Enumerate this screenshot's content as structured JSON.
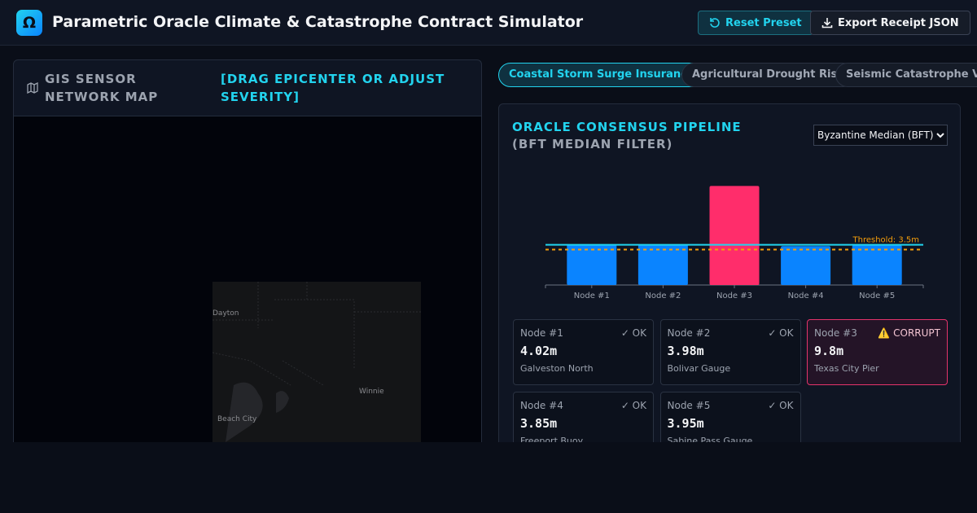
{
  "header": {
    "logo": "Ω",
    "title": "Parametric Oracle Climate & Catastrophe Contract Simulator",
    "buttons": [
      "Reset Preset",
      "Export Receipt JSON"
    ]
  },
  "map_panel": {
    "title": "GIS SENSOR NETWORK MAP",
    "hint": "[DRAG EPICENTER OR ADJUST SEVERITY]",
    "places": [
      "Dayton",
      "Winnie",
      "Beach City"
    ]
  },
  "tabs": [
    "Coastal Storm Surge Insurance",
    "Agricultural Drought Risk",
    "Seismic Catastrophe Va"
  ],
  "oracle": {
    "title": "ORACLE CONSENSUS PIPELINE",
    "subtitle": "(BFT MEDIAN FILTER)",
    "filter": "Byzantine Median (BFT)"
  },
  "chart_data": {
    "type": "bar",
    "categories": [
      "Node #1",
      "Node #2",
      "Node #3",
      "Node #4",
      "Node #5"
    ],
    "values": [
      4.02,
      3.98,
      9.8,
      3.85,
      3.95
    ],
    "colors": [
      "#0a84ff",
      "#0a84ff",
      "#ff2d6b",
      "#0a84ff",
      "#0a84ff"
    ],
    "ylim": [
      0,
      12
    ],
    "median": 3.98,
    "median_color": "#22d3ee",
    "threshold": 3.5,
    "threshold_color": "#f59e0b",
    "threshold_label": "Threshold: 3.5m"
  },
  "nodes": [
    {
      "name": "Node #1",
      "status": "✓ OK",
      "value": "4.02m",
      "location": "Galveston North"
    },
    {
      "name": "Node #2",
      "status": "✓ OK",
      "value": "3.98m",
      "location": "Bolivar Gauge"
    },
    {
      "name": "Node #3",
      "status": "⚠️ CORRUPT",
      "value": "9.8m",
      "location": "Texas City Pier",
      "highlight": true
    },
    {
      "name": "Node #4",
      "status": "✓ OK",
      "value": "3.85m",
      "location": "Freeport Buoy"
    },
    {
      "name": "Node #5",
      "status": "✓ OK",
      "value": "3.95m",
      "location": "Sabine Pass Gauge"
    }
  ]
}
